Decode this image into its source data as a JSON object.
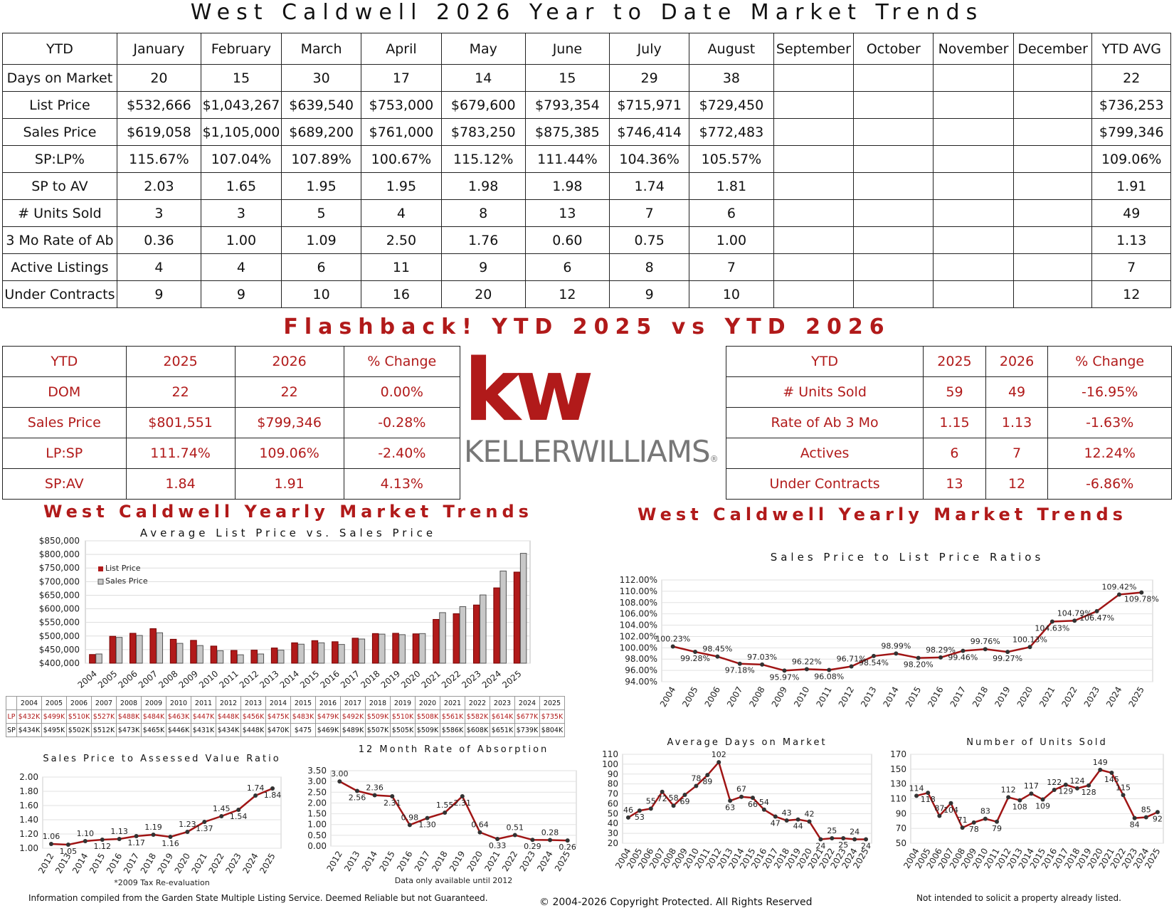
{
  "page_title": "West Caldwell 2026 Year to Date Market Trends",
  "ytd_table": {
    "header": [
      "YTD",
      "January",
      "February",
      "March",
      "April",
      "May",
      "June",
      "July",
      "August",
      "September",
      "October",
      "November",
      "December",
      "YTD AVG"
    ],
    "rows": [
      [
        "Days on Market",
        "20",
        "15",
        "30",
        "17",
        "14",
        "15",
        "29",
        "38",
        "",
        "",
        "",
        "",
        "22"
      ],
      [
        "List Price",
        "$532,666",
        "$1,043,267",
        "$639,540",
        "$753,000",
        "$679,600",
        "$793,354",
        "$715,971",
        "$729,450",
        "",
        "",
        "",
        "",
        "$736,253"
      ],
      [
        "Sales Price",
        "$619,058",
        "$1,105,000",
        "$689,200",
        "$761,000",
        "$783,250",
        "$875,385",
        "$746,414",
        "$772,483",
        "",
        "",
        "",
        "",
        "$799,346"
      ],
      [
        "SP:LP%",
        "115.67%",
        "107.04%",
        "107.89%",
        "100.67%",
        "115.12%",
        "111.44%",
        "104.36%",
        "105.57%",
        "",
        "",
        "",
        "",
        "109.06%"
      ],
      [
        "SP to AV",
        "2.03",
        "1.65",
        "1.95",
        "1.95",
        "1.98",
        "1.98",
        "1.74",
        "1.81",
        "",
        "",
        "",
        "",
        "1.91"
      ],
      [
        "# Units Sold",
        "3",
        "3",
        "5",
        "4",
        "8",
        "13",
        "7",
        "6",
        "",
        "",
        "",
        "",
        "49"
      ],
      [
        "3 Mo Rate of Ab",
        "0.36",
        "1.00",
        "1.09",
        "2.50",
        "1.76",
        "0.60",
        "0.75",
        "1.00",
        "",
        "",
        "",
        "",
        "1.13"
      ],
      [
        "Active Listings",
        "4",
        "4",
        "6",
        "11",
        "9",
        "6",
        "8",
        "7",
        "",
        "",
        "",
        "",
        "7"
      ],
      [
        "Under Contracts",
        "9",
        "9",
        "10",
        "16",
        "20",
        "12",
        "9",
        "10",
        "",
        "",
        "",
        "",
        "12"
      ]
    ]
  },
  "flashback_title": "Flashback! YTD 2025 vs YTD 2026",
  "compare_left": {
    "header": [
      "YTD",
      "2025",
      "2026",
      "% Change"
    ],
    "rows": [
      [
        "DOM",
        "22",
        "22",
        "0.00%"
      ],
      [
        "Sales Price",
        "$801,551",
        "$799,346",
        "-0.28%"
      ],
      [
        "LP:SP",
        "111.74%",
        "109.06%",
        "-2.40%"
      ],
      [
        "SP:AV",
        "1.84",
        "1.91",
        "4.13%"
      ]
    ]
  },
  "compare_right": {
    "header": [
      "YTD",
      "2025",
      "2026",
      "% Change"
    ],
    "rows": [
      [
        "# Units Sold",
        "59",
        "49",
        "-16.95%"
      ],
      [
        "Rate of Ab 3 Mo",
        "1.15",
        "1.13",
        "-1.63%"
      ],
      [
        "Actives",
        "6",
        "7",
        "12.24%"
      ],
      [
        "Under Contracts",
        "13",
        "12",
        "-6.86%"
      ]
    ]
  },
  "logo": {
    "mark": "kw",
    "name": "KELLERWILLIAMS",
    "reg": "®"
  },
  "section_titles": {
    "left": "West Caldwell Yearly Market Trends",
    "right": "West Caldwell Yearly Market Trends"
  },
  "colors": {
    "red": "#b11a1a",
    "gray": "#bdbdbd"
  },
  "chart_data": [
    {
      "type": "bar",
      "title": "Average List Price vs. Sales Price",
      "categories": [
        "2004",
        "2005",
        "2006",
        "2007",
        "2008",
        "2009",
        "2010",
        "2011",
        "2012",
        "2013",
        "2014",
        "2015",
        "2016",
        "2017",
        "2018",
        "2019",
        "2020",
        "2021",
        "2022",
        "2023",
        "2024",
        "2025"
      ],
      "series": [
        {
          "name": "List Price",
          "values": [
            432,
            499,
            510,
            527,
            488,
            484,
            463,
            447,
            448,
            456,
            475,
            483,
            479,
            492,
            509,
            510,
            508,
            561,
            582,
            614,
            677,
            735
          ]
        },
        {
          "name": "Sales Price",
          "values": [
            434,
            495,
            502,
            512,
            473,
            465,
            446,
            431,
            434,
            448,
            470,
            475,
            469,
            489,
            507,
            505,
            509,
            586,
            608,
            651,
            739,
            804
          ]
        }
      ],
      "ylim": [
        400000,
        850000
      ],
      "yticks": [
        "$400,000",
        "$450,000",
        "$500,000",
        "$550,000",
        "$600,000",
        "$650,000",
        "$700,000",
        "$750,000",
        "$800,000",
        "$850,000"
      ],
      "legend": "top-left",
      "table_rows": {
        "lp_label": "LP",
        "sp_label": "SP",
        "lp": [
          "$432K",
          "$499K",
          "$510K",
          "$527K",
          "$488K",
          "$484K",
          "$463K",
          "$447K",
          "$448K",
          "$456K",
          "$475K",
          "$483K",
          "$479K",
          "$492K",
          "$509K",
          "$510K",
          "$508K",
          "$561K",
          "$582K",
          "$614K",
          "$677K",
          "$735K"
        ],
        "sp": [
          "$434K",
          "$495K",
          "$502K",
          "$512K",
          "$473K",
          "$465K",
          "$446K",
          "$431K",
          "$434K",
          "$448K",
          "$470K",
          "$475",
          "$469K",
          "$489K",
          "$507K",
          "$505K",
          "$509K",
          "$586K",
          "$608K",
          "$651K",
          "$739K",
          "$804K"
        ]
      }
    },
    {
      "type": "line",
      "title": "Sales Price to List Price Ratios",
      "categories": [
        "2004",
        "2005",
        "2006",
        "2007",
        "2008",
        "2009",
        "2010",
        "2011",
        "2012",
        "2013",
        "2014",
        "2015",
        "2016",
        "2017",
        "2018",
        "2019",
        "2020",
        "2021",
        "2022",
        "2023",
        "2024",
        "2025"
      ],
      "values": [
        100.23,
        99.28,
        98.45,
        97.18,
        97.03,
        95.97,
        96.22,
        96.08,
        96.71,
        98.54,
        98.99,
        98.2,
        98.29,
        99.46,
        99.76,
        99.27,
        100.13,
        104.63,
        104.79,
        106.47,
        109.42,
        109.78
      ],
      "labels": [
        "100.23%",
        "99.28%",
        "98.45%",
        "97.18%",
        "97.03%",
        "95.97%",
        "96.22%",
        "96.08%",
        "96.71%",
        "98.54%",
        "98.99%",
        "98.20%",
        "98.29%",
        "99.46%",
        "99.76%",
        "99.27%",
        "100.13%",
        "104.63%",
        "104.79%",
        "106.47%",
        "109.42%",
        "109.78%"
      ],
      "ylim": [
        94,
        112
      ],
      "yticks": [
        "94.00%",
        "96.00%",
        "98.00%",
        "100.00%",
        "102.00%",
        "104.00%",
        "106.00%",
        "108.00%",
        "110.00%",
        "112.00%"
      ]
    },
    {
      "type": "line",
      "title": "Sales Price to Assessed Value Ratio",
      "categories": [
        "2012",
        "2013",
        "2014",
        "2015",
        "2016",
        "2017",
        "2018",
        "2019",
        "2020",
        "2021",
        "2022",
        "2023",
        "2024",
        "2025"
      ],
      "values": [
        1.06,
        1.05,
        1.1,
        1.12,
        1.13,
        1.17,
        1.19,
        1.16,
        1.23,
        1.37,
        1.45,
        1.54,
        1.74,
        1.84
      ],
      "labels": [
        "1.06",
        "1.05",
        "1.10",
        "1.12",
        "1.13",
        "1.17",
        "1.19",
        "1.16",
        "1.23",
        "1.37",
        "1.45",
        "1.54",
        "1.74",
        "1.84"
      ],
      "ylim": [
        1.0,
        2.0
      ],
      "yticks": [
        "1.00",
        "1.20",
        "1.40",
        "1.60",
        "1.80",
        "2.00"
      ],
      "note": "*2009 Tax Re-evaluation"
    },
    {
      "type": "line",
      "title": "12 Month Rate of Absorption",
      "categories": [
        "2012",
        "2013",
        "2014",
        "2015",
        "2016",
        "2017",
        "2018",
        "2019",
        "2020",
        "2021",
        "2022",
        "2023",
        "2024",
        "2025"
      ],
      "values": [
        3.0,
        2.56,
        2.36,
        2.31,
        0.98,
        1.3,
        1.55,
        2.31,
        0.64,
        0.33,
        0.51,
        0.29,
        0.28,
        0.26
      ],
      "labels": [
        "3.00",
        "2.56",
        "2.36",
        "2.31",
        "0.98",
        "1.30",
        "1.55",
        "2.31",
        "0.64",
        "0.33",
        "0.51",
        "0.29",
        "0.28",
        "0.26"
      ],
      "ylim": [
        0,
        3.5
      ],
      "yticks": [
        "0.00",
        "0.50",
        "1.00",
        "1.50",
        "2.00",
        "2.50",
        "3.00",
        "3.50"
      ],
      "note": "Data only available until 2012"
    },
    {
      "type": "line",
      "title": "Average Days on Market",
      "categories": [
        "2004",
        "2005",
        "2006",
        "2007",
        "2008",
        "2009",
        "2010",
        "2011",
        "2012",
        "2013",
        "2014",
        "2015",
        "2016",
        "2017",
        "2018",
        "2019",
        "2020",
        "2021",
        "2022",
        "2023",
        "2024",
        "2025"
      ],
      "values": [
        46,
        53,
        55,
        72,
        58,
        69,
        78,
        89,
        102,
        63,
        67,
        66,
        54,
        47,
        43,
        44,
        42,
        24,
        25,
        25,
        24,
        24
      ],
      "labels": [
        "46",
        "53",
        "55",
        "72",
        "58",
        "69",
        "78",
        "89",
        "102",
        "63",
        "67",
        "66",
        "54",
        "47",
        "43",
        "44",
        "42",
        "24",
        "25",
        "25",
        "24",
        "24"
      ],
      "ylim": [
        20,
        110
      ],
      "yticks": [
        "20",
        "30",
        "40",
        "50",
        "60",
        "70",
        "80",
        "90",
        "100",
        "110"
      ]
    },
    {
      "type": "line",
      "title": "Number of Units Sold",
      "categories": [
        "2004",
        "2005",
        "2006",
        "2007",
        "2008",
        "2009",
        "2010",
        "2011",
        "2012",
        "2013",
        "2014",
        "2015",
        "2016",
        "2017",
        "2018",
        "2019",
        "2020",
        "2021",
        "2022",
        "2023",
        "2024",
        "2025"
      ],
      "values": [
        114,
        118,
        87,
        104,
        71,
        78,
        83,
        79,
        112,
        108,
        117,
        109,
        122,
        129,
        124,
        128,
        149,
        145,
        115,
        84,
        85,
        92
      ],
      "labels": [
        "114",
        "118",
        "87",
        "104",
        "71",
        "78",
        "83",
        "79",
        "112",
        "108",
        "117",
        "109",
        "122",
        "129",
        "124",
        "128",
        "149",
        "145",
        "115",
        "84",
        "85",
        "92"
      ],
      "ylim": [
        50,
        170
      ],
      "yticks": [
        "50",
        "70",
        "90",
        "110",
        "130",
        "150",
        "170"
      ]
    }
  ],
  "footer": {
    "left": "Information compiled from the Garden State Multiple Listing Service.  Deemed Reliable but not Guaranteed.",
    "center": "© 2004-2026 Copyright Protected.  All Rights Reserved",
    "right": "Not intended to solicit a property already listed."
  }
}
